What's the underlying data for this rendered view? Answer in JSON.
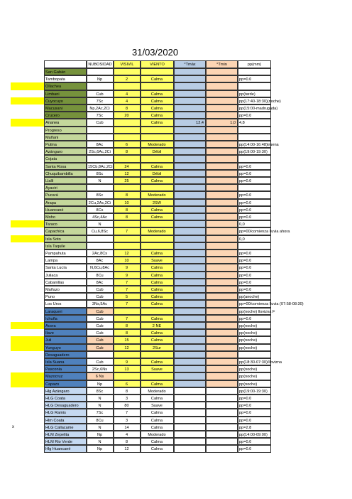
{
  "title": "31/03/2020",
  "marker": "x",
  "table": {
    "headers": [
      null,
      "NUBOSIDAD",
      "VISIVIL",
      "VIENTO",
      "°Tmáx",
      "°Tmin",
      "pp(mm)"
    ],
    "rows": [
      [
        "San Gabán",
        null,
        null,
        null,
        null,
        null,
        null
      ],
      [
        "Tambopata",
        "Np",
        "2",
        "Calma",
        null,
        null,
        "pp=0.0"
      ],
      [
        "Ollachea",
        null,
        null,
        null,
        null,
        null,
        null
      ],
      [
        "Limbani",
        "Cub",
        "4",
        "Calma",
        null,
        null,
        "pp(tarde)"
      ],
      [
        "Cuyocuyo",
        "7Sc",
        "4",
        "Calma",
        null,
        null,
        "pp(17:40-18:30)(noche)"
      ],
      [
        "Macusani",
        "Np,2Ac,2Ci",
        "8",
        "Calma",
        null,
        null,
        "pp(15:00-madrugada)"
      ],
      [
        "Crucero",
        "7Sc",
        "20",
        "Calma",
        null,
        null,
        "pp=0.0"
      ],
      [
        "Ananea",
        "Cub",
        null,
        "Calma",
        "12,4",
        "1,0",
        "4,8"
      ],
      [
        "Progreso",
        null,
        null,
        null,
        null,
        null,
        null
      ],
      [
        "Muñani",
        null,
        null,
        null,
        null,
        null,
        null
      ],
      [
        "Putina",
        "8Ac",
        "6",
        "Moderado",
        null,
        null,
        "pp(14:00-16:48)truena"
      ],
      [
        "Azángaro",
        "2Sc,6Ac,2Ci",
        "8",
        "Débil",
        null,
        null,
        "pp(19:00-19:30)"
      ],
      [
        "Cojata",
        null,
        null,
        null,
        null,
        null,
        null
      ],
      [
        "Santa Rosa",
        "15Cb,8Ac,2Ci",
        "24",
        "Calma",
        null,
        null,
        "pp=0.0"
      ],
      [
        "Chuquibambilla",
        "8Sc",
        "12",
        "Débil",
        null,
        null,
        "pp=0.0"
      ],
      [
        "Llalli",
        "N",
        "25",
        "Calma",
        null,
        null,
        "pp=0.0"
      ],
      [
        "Ayaviri",
        null,
        null,
        null,
        null,
        null,
        null
      ],
      [
        "Pucará",
        "8Sc",
        "8",
        "Moderado",
        null,
        null,
        "pp=0.0"
      ],
      [
        "Arapa",
        "2Cu,2Ac,2Ci",
        "10",
        "2SW",
        null,
        null,
        "pp=0.0"
      ],
      [
        "Huancané",
        "8Cs",
        "8",
        "Calma",
        null,
        null,
        "pp=0.0"
      ],
      [
        "Moho",
        "4Sc,4Ac",
        "8",
        "Calma",
        null,
        null,
        "pp=0.0"
      ],
      [
        "Taraco",
        "N",
        null,
        null,
        null,
        null,
        "0,0"
      ],
      [
        "Capachica",
        "Cu,6,8Sc",
        "7",
        "Moderado",
        null,
        null,
        "pp=00/comienza lluvia ahora"
      ],
      [
        "Isla Soto",
        null,
        null,
        null,
        null,
        null,
        "0,0"
      ],
      [
        "Isla Taquile",
        null,
        null,
        null,
        null,
        null,
        null
      ],
      [
        "Pampahuta",
        "2Ac,8Cs",
        "12",
        "Calma",
        null,
        null,
        "pp=0.0"
      ],
      [
        "Lampa",
        "8Ac",
        "10",
        "Suave",
        null,
        null,
        "pp=0.0"
      ],
      [
        "Santa Lucía",
        "N,6Cu,8Ac",
        "9",
        "Calma",
        null,
        null,
        "pp=0.0"
      ],
      [
        "Juliaca",
        "8Cu",
        "9",
        "Calma",
        null,
        null,
        "pp=0.0"
      ],
      [
        "Cabanillas",
        "8Ac",
        "7",
        "Calma",
        null,
        null,
        "pp=0.0"
      ],
      [
        "Mañazo",
        "Cub",
        "7",
        "Calma",
        null,
        null,
        "pp=0.0"
      ],
      [
        "Puno",
        "Cub",
        "5",
        "Calma",
        null,
        null,
        "pp(anoche)"
      ],
      [
        "Los Uros",
        "3Ns,5Ac",
        "7",
        "Calma",
        null,
        null,
        "pp=00/comienza lluvia (07:58-08:30)"
      ],
      [
        "Laraqueri",
        "Cub",
        null,
        null,
        null,
        null,
        "pp(noche)     llovizna F"
      ],
      [
        "Ichuña",
        "Cub",
        "7",
        "Calma",
        null,
        null,
        "pp=0.0"
      ],
      [
        "Acora",
        "Cub",
        "8",
        "2 NE",
        null,
        null,
        "pp(noche)"
      ],
      [
        "Ilave",
        "Cub",
        "8",
        "Calma",
        null,
        null,
        "pp(noche)"
      ],
      [
        "Juli",
        "Cub",
        "15",
        "Calma",
        null,
        null,
        "pp(noche)"
      ],
      [
        "Yunguyo",
        "Cub",
        "12",
        "2Sur",
        null,
        null,
        "pp(noche)"
      ],
      [
        "Desaguadero",
        null,
        null,
        null,
        null,
        null,
        null
      ],
      [
        "Isla Suana",
        "Cub",
        "9",
        "Calma",
        null,
        null,
        "pp(18:30-07:30)/llovizna"
      ],
      [
        "Pasconia",
        "2Sc,6Ns",
        "13",
        "Suave",
        null,
        null,
        "pp(noche)"
      ],
      [
        "Mazocruz",
        "6 Ns",
        null,
        null,
        null,
        null,
        "pp(noche)"
      ],
      [
        "Capazo",
        "Np",
        "6",
        "Calma",
        null,
        null,
        "pp(noche)"
      ],
      [
        "Hlg Azángaro",
        "8Sc",
        "8",
        "Moderado",
        null,
        null,
        "pp(19:00-19:30)"
      ],
      [
        "HLG Coata",
        "N",
        "3",
        "Calma",
        null,
        null,
        "pp=0.0"
      ],
      [
        "HLG Desaguadero",
        "N",
        "80",
        "Suave",
        null,
        null,
        "pp=0.0"
      ],
      [
        "HLG Ramis",
        "7Sc",
        "7",
        "Calma",
        null,
        null,
        "pp=0.0"
      ],
      [
        "Hlm Coata",
        "8Cu",
        "3",
        "Calma",
        null,
        null,
        "pp=0.0"
      ],
      [
        "HLG Callacame",
        "N",
        "14",
        "Calma",
        null,
        null,
        "pp=2.8"
      ],
      [
        "HLM Zepelita",
        "Np",
        "4",
        "Moderado",
        null,
        null,
        "pp(14:00-09:00)"
      ],
      [
        "HLM Rio Verde",
        "N",
        "8",
        "Calma",
        null,
        null,
        "pp=0.0"
      ],
      [
        "Hlg Huancané",
        "Np",
        "12",
        "Calma",
        null,
        null,
        "pp=0.0"
      ]
    ]
  }
}
